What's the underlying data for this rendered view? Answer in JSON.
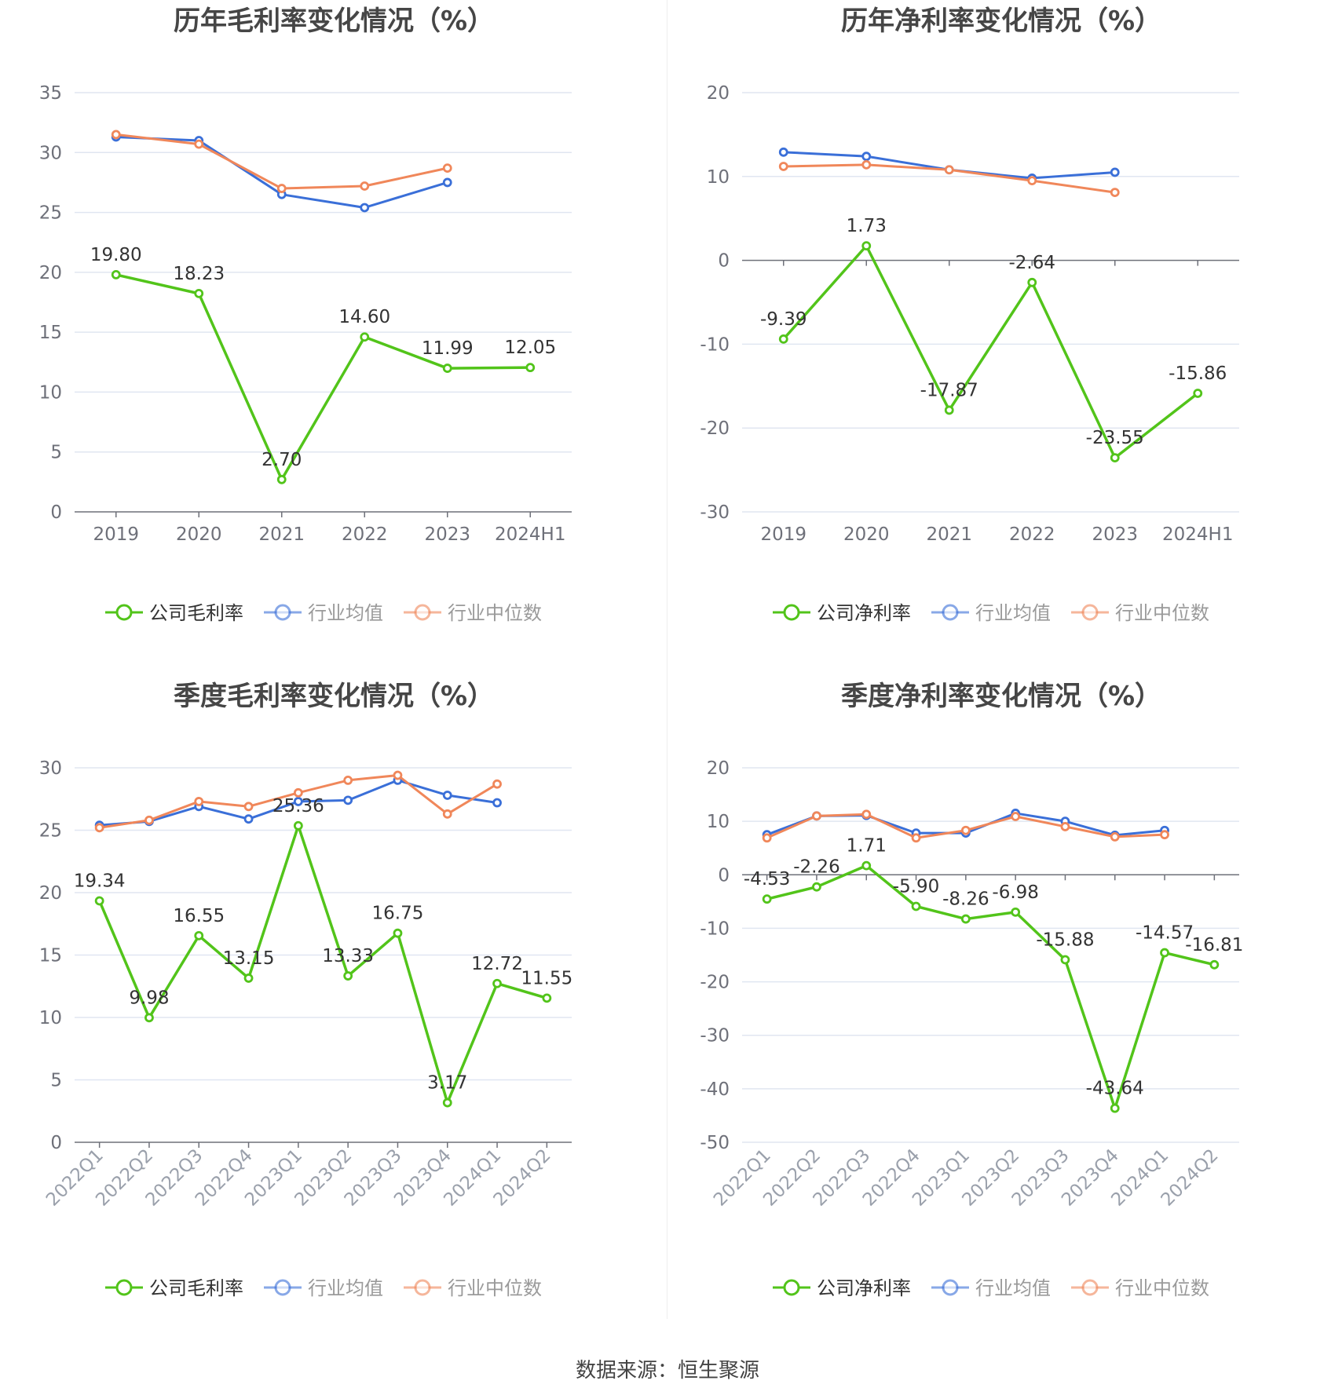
{
  "footer": {
    "source": "数据来源：恒生聚源"
  },
  "colors": {
    "company": "#52c41a",
    "avg": "#3a6fd8",
    "median": "#f0875a",
    "grid": "#e0e6f1",
    "axis": "#6e7079",
    "title": "#464646"
  },
  "chart_data": [
    {
      "id": "annual-gross",
      "type": "line",
      "title": "历年毛利率变化情况（%）",
      "categories": [
        "2019",
        "2020",
        "2021",
        "2022",
        "2023",
        "2024H1"
      ],
      "ylim": [
        0,
        35
      ],
      "yticks": [
        0,
        5,
        10,
        15,
        20,
        25,
        30,
        35
      ],
      "rotate_labels": false,
      "grid": true,
      "legend_position": "bottom-center",
      "series": [
        {
          "name": "公司毛利率",
          "color": "#52c41a",
          "values": [
            19.8,
            18.23,
            2.7,
            14.6,
            11.99,
            12.05
          ],
          "labels": [
            "19.80",
            "18.23",
            "2.70",
            "14.60",
            "11.99",
            "12.05"
          ]
        },
        {
          "name": "行业均值",
          "color": "#3a6fd8",
          "values": [
            31.3,
            31.0,
            26.5,
            25.4,
            27.5,
            null
          ]
        },
        {
          "name": "行业中位数",
          "color": "#f0875a",
          "values": [
            31.5,
            30.7,
            27.0,
            27.2,
            28.7,
            null
          ]
        }
      ]
    },
    {
      "id": "annual-net",
      "type": "line",
      "title": "历年净利率变化情况（%）",
      "categories": [
        "2019",
        "2020",
        "2021",
        "2022",
        "2023",
        "2024H1"
      ],
      "ylim": [
        -30,
        20
      ],
      "yticks": [
        -30,
        -20,
        -10,
        0,
        10,
        20
      ],
      "rotate_labels": false,
      "grid": true,
      "legend_position": "bottom-center",
      "series": [
        {
          "name": "公司净利率",
          "color": "#52c41a",
          "values": [
            -9.39,
            1.73,
            -17.87,
            -2.64,
            -23.55,
            -15.86
          ],
          "labels": [
            "-9.39",
            "1.73",
            "-17.87",
            "-2.64",
            "-23.55",
            "-15.86"
          ]
        },
        {
          "name": "行业均值",
          "color": "#3a6fd8",
          "values": [
            12.9,
            12.4,
            10.8,
            9.8,
            10.5,
            null
          ]
        },
        {
          "name": "行业中位数",
          "color": "#f0875a",
          "values": [
            11.2,
            11.4,
            10.8,
            9.5,
            8.1,
            null
          ]
        }
      ]
    },
    {
      "id": "quarterly-gross",
      "type": "line",
      "title": "季度毛利率变化情况（%）",
      "categories": [
        "2022Q1",
        "2022Q2",
        "2022Q3",
        "2022Q4",
        "2023Q1",
        "2023Q2",
        "2023Q3",
        "2023Q4",
        "2024Q1",
        "2024Q2"
      ],
      "ylim": [
        0,
        30
      ],
      "yticks": [
        0,
        5,
        10,
        15,
        20,
        25,
        30
      ],
      "rotate_labels": true,
      "grid": true,
      "legend_position": "bottom-center",
      "series": [
        {
          "name": "公司毛利率",
          "color": "#52c41a",
          "values": [
            19.34,
            9.98,
            16.55,
            13.15,
            25.36,
            13.33,
            16.75,
            3.17,
            12.72,
            11.55
          ],
          "labels": [
            "19.34",
            "9.98",
            "16.55",
            "13.15",
            "25.36",
            "13.33",
            "16.75",
            "3.17",
            "12.72",
            "11.55"
          ]
        },
        {
          "name": "行业均值",
          "color": "#3a6fd8",
          "values": [
            25.4,
            25.7,
            26.9,
            25.9,
            27.3,
            27.4,
            29.0,
            27.8,
            27.2,
            null
          ]
        },
        {
          "name": "行业中位数",
          "color": "#f0875a",
          "values": [
            25.2,
            25.8,
            27.3,
            26.9,
            28.0,
            29.0,
            29.4,
            26.3,
            28.7,
            null
          ]
        }
      ]
    },
    {
      "id": "quarterly-net",
      "type": "line",
      "title": "季度净利率变化情况（%）",
      "categories": [
        "2022Q1",
        "2022Q2",
        "2022Q3",
        "2022Q4",
        "2023Q1",
        "2023Q2",
        "2023Q3",
        "2023Q4",
        "2024Q1",
        "2024Q2"
      ],
      "ylim": [
        -50,
        20
      ],
      "yticks": [
        -50,
        -40,
        -30,
        -20,
        -10,
        0,
        10,
        20
      ],
      "rotate_labels": true,
      "grid": true,
      "legend_position": "bottom-center",
      "series": [
        {
          "name": "公司净利率",
          "color": "#52c41a",
          "values": [
            -4.53,
            -2.26,
            1.71,
            -5.9,
            -8.26,
            -6.98,
            -15.88,
            -43.64,
            -14.57,
            -16.81
          ],
          "labels": [
            "-4.53",
            "-2.26",
            "1.71",
            "-5.90",
            "-8.26",
            "-6.98",
            "-15.88",
            "-43.64",
            "-14.57",
            "-16.81"
          ]
        },
        {
          "name": "行业均值",
          "color": "#3a6fd8",
          "values": [
            7.5,
            11.0,
            11.1,
            7.8,
            7.8,
            11.5,
            10.0,
            7.4,
            8.3,
            null
          ]
        },
        {
          "name": "行业中位数",
          "color": "#f0875a",
          "values": [
            6.9,
            11.0,
            11.3,
            6.9,
            8.3,
            10.9,
            9.0,
            7.1,
            7.5,
            null
          ]
        }
      ]
    }
  ]
}
